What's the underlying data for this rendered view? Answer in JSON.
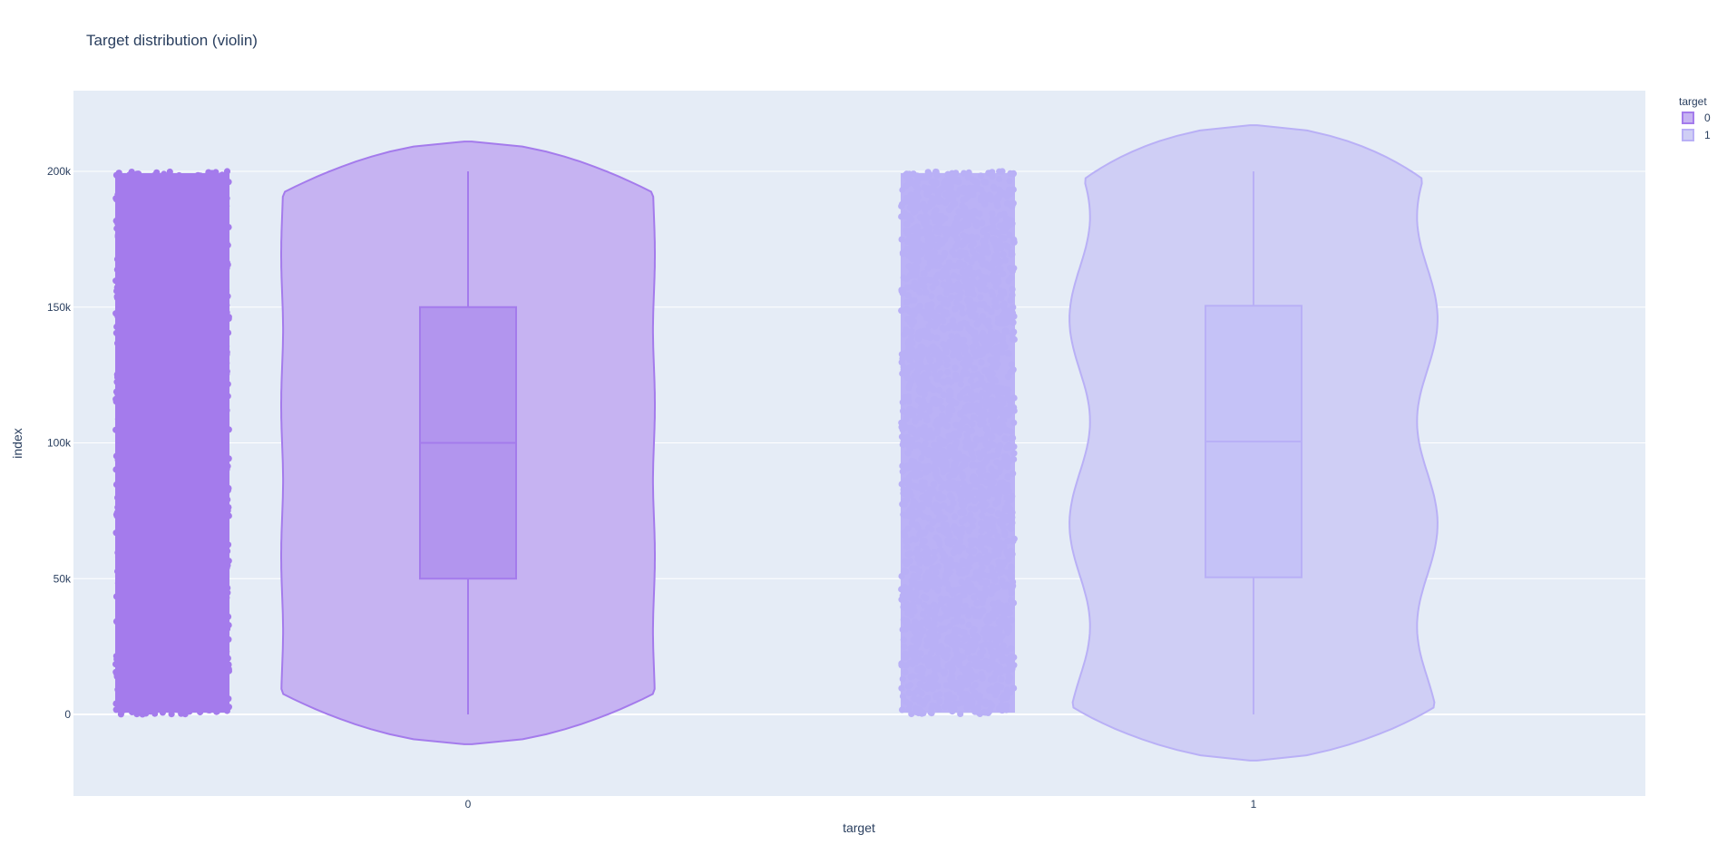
{
  "chart_data": {
    "type": "violin",
    "title": "Target distribution (violin)",
    "xlabel": "target",
    "ylabel": "index",
    "categories": [
      "0",
      "1"
    ],
    "ylim": [
      -30000,
      230000
    ],
    "yticks": [
      0,
      50000,
      100000,
      150000,
      200000
    ],
    "ytick_labels": [
      "0",
      "50k",
      "100k",
      "150k",
      "200k"
    ],
    "grid": true,
    "points": "all (jittered strip left of each violin)",
    "legend": {
      "title": "target",
      "placement": "top-right",
      "entries": [
        "0",
        "1"
      ]
    },
    "series": [
      {
        "name": "0",
        "color": "#a47bec",
        "fill": "#c6b3f2",
        "box_fill": "#b295ee",
        "box": {
          "min": 0,
          "q1": 50000,
          "median": 100000,
          "q3": 150000,
          "max": 200000
        },
        "violin_extent": [
          -11000,
          211000
        ],
        "point_range": [
          0,
          200000
        ]
      },
      {
        "name": "1",
        "color": "#b9b0f6",
        "fill": "#cfcef5",
        "box_fill": "#c5c2f7",
        "box": {
          "min": 0,
          "q1": 50500,
          "median": 100500,
          "q3": 150500,
          "max": 200000
        },
        "violin_extent": [
          -17000,
          217000
        ],
        "point_range": [
          0,
          200000
        ]
      }
    ]
  }
}
